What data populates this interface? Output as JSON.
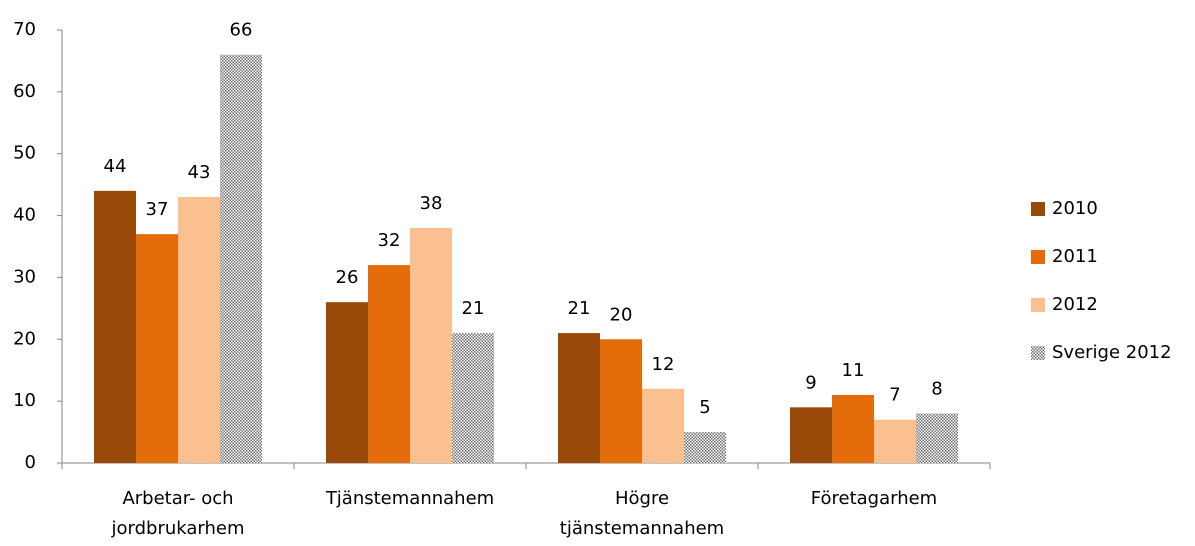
{
  "chart_data": {
    "type": "bar",
    "categories": [
      "Arbetar- och\njordbrukarhem",
      "Tjänstemannahem",
      "Högre\ntjänstemannahem",
      "Företagarhem"
    ],
    "series": [
      {
        "name": "2010",
        "color": "#984807",
        "values": [
          44,
          26,
          21,
          9
        ]
      },
      {
        "name": "2011",
        "color": "#e46c0a",
        "values": [
          37,
          32,
          20,
          11
        ]
      },
      {
        "name": "2012",
        "color": "#fac090",
        "values": [
          43,
          38,
          12,
          7
        ]
      },
      {
        "name": "Sverige 2012",
        "color": "#8c8c8c",
        "pattern": "checker",
        "values": [
          66,
          21,
          5,
          8
        ]
      }
    ],
    "ylim": [
      0,
      70
    ],
    "yticks": [
      0,
      10,
      20,
      30,
      40,
      50,
      60,
      70
    ],
    "grid": false,
    "legend": "right"
  }
}
